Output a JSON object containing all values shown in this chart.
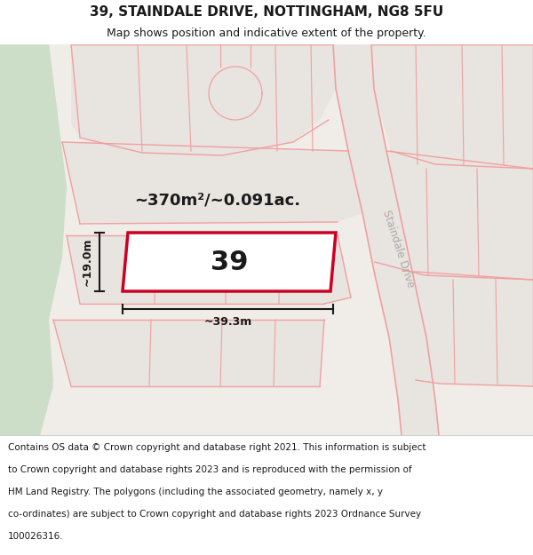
{
  "title_line1": "39, STAINDALE DRIVE, NOTTINGHAM, NG8 5FU",
  "title_line2": "Map shows position and indicative extent of the property.",
  "area_label": "~370m²/~0.091ac.",
  "number_label": "39",
  "width_label": "~39.3m",
  "height_label": "~19.0m",
  "street_label": "Staindale Drive",
  "footer_lines": [
    "Contains OS data © Crown copyright and database right 2021. This information is subject",
    "to Crown copyright and database rights 2023 and is reproduced with the permission of",
    "HM Land Registry. The polygons (including the associated geometry, namely x, y",
    "co-ordinates) are subject to Crown copyright and database rights 2023 Ordnance Survey",
    "100026316."
  ],
  "map_bg": "#f0ede8",
  "green_area_color": "#cddec8",
  "plot_fill": "#ffffff",
  "plot_edge": "#cc0022",
  "road_color": "#f0a0a0",
  "building_fill": "#e8e4e0",
  "dim_line_color": "#1a1a1a",
  "title_fontsize": 11,
  "subtitle_fontsize": 9,
  "footer_fontsize": 7.5,
  "street_label_color": "#aaaaaa",
  "number_fontsize": 22,
  "area_fontsize": 13
}
